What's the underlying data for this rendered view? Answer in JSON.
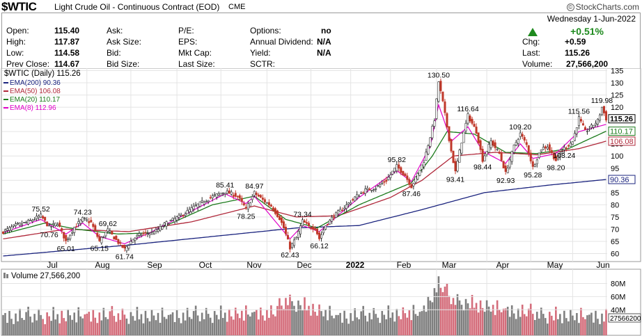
{
  "header": {
    "symbol": "$WTIC",
    "description": "Light Crude Oil - Continuous Contract (EOD)",
    "exchange": "CME",
    "brand": "StockCharts.com",
    "brand_mark": "©"
  },
  "quote": {
    "date": "Wednesday 1-Jun-2022",
    "change_pct": "+0.51%",
    "fields": [
      {
        "label": "Open:",
        "value": "115.40"
      },
      {
        "label": "High:",
        "value": "117.87"
      },
      {
        "label": "Low:",
        "value": "114.58"
      },
      {
        "label": "Prev Close:",
        "value": "114.67"
      },
      {
        "label": "Ask:",
        "value": ""
      },
      {
        "label": "Ask Size:",
        "value": ""
      },
      {
        "label": "Bid:",
        "value": ""
      },
      {
        "label": "Bid Size:",
        "value": ""
      },
      {
        "label": "P/E:",
        "value": ""
      },
      {
        "label": "EPS:",
        "value": ""
      },
      {
        "label": "Mkt Cap:",
        "value": ""
      },
      {
        "label": "Last Size:",
        "value": ""
      },
      {
        "label": "Options:",
        "value": "no"
      },
      {
        "label": "Annual Dividend:",
        "value": "N/A"
      },
      {
        "label": "Yield:",
        "value": "N/A"
      },
      {
        "label": "SCTR:",
        "value": ""
      },
      {
        "label": "Chg:",
        "value": "+0.59"
      },
      {
        "label": "Last:",
        "value": "115.26"
      },
      {
        "label": "Volume:",
        "value": "27,566,200"
      }
    ]
  },
  "colors": {
    "up": "#2a2a2a",
    "down": "#c0392b",
    "ema200": "#1a237e",
    "ema50": "#b0283a",
    "ema20": "#1b7a1b",
    "ema8": "#e000c8",
    "vol_up": "#7f7f7f",
    "vol_down": "#d46d7b",
    "grid": "#e4e4e4"
  },
  "chart_data": {
    "type": "line",
    "price_legend": "$WTIC (Daily) 115.26",
    "x_labels": [
      "Jul",
      "Aug",
      "Sep",
      "Oct",
      "Nov",
      "Dec",
      "2022",
      "Feb",
      "Mar",
      "Apr",
      "May",
      "Jun"
    ],
    "y_ticks": [
      60,
      65,
      70,
      75,
      80,
      85,
      90,
      95,
      100,
      105,
      110,
      115,
      120,
      125,
      130,
      135
    ],
    "ylim": [
      57,
      136
    ],
    "anchors": [
      [
        0,
        69
      ],
      [
        6,
        71.5
      ],
      [
        12,
        73
      ],
      [
        18,
        75.52
      ],
      [
        22,
        70.76
      ],
      [
        26,
        72.6
      ],
      [
        30,
        65.01
      ],
      [
        34,
        70.8
      ],
      [
        38,
        74.23
      ],
      [
        42,
        72.7
      ],
      [
        46,
        65.15
      ],
      [
        50,
        69.62
      ],
      [
        54,
        65.5
      ],
      [
        58,
        61.74
      ],
      [
        62,
        66
      ],
      [
        66,
        68
      ],
      [
        72,
        68.6
      ],
      [
        78,
        72.5
      ],
      [
        85,
        75.5
      ],
      [
        92,
        79.5
      ],
      [
        99,
        83
      ],
      [
        106,
        85.41
      ],
      [
        112,
        83.5
      ],
      [
        116,
        78.25
      ],
      [
        120,
        84.97
      ],
      [
        124,
        82
      ],
      [
        128,
        79.5
      ],
      [
        132,
        74.5
      ],
      [
        134,
        70.5
      ],
      [
        137,
        62.43
      ],
      [
        140,
        66.5
      ],
      [
        143,
        73.34
      ],
      [
        146,
        71
      ],
      [
        149,
        70.5
      ],
      [
        151,
        66.12
      ],
      [
        154,
        71.5
      ],
      [
        158,
        75.5
      ],
      [
        163,
        79
      ],
      [
        168,
        83
      ],
      [
        173,
        86
      ],
      [
        178,
        87
      ],
      [
        183,
        90
      ],
      [
        188,
        95.82
      ],
      [
        192,
        92
      ],
      [
        195,
        87.46
      ],
      [
        198,
        92.5
      ],
      [
        201,
        98
      ],
      [
        204,
        108
      ],
      [
        206,
        115
      ],
      [
        208,
        130.5
      ],
      [
        210,
        122
      ],
      [
        212,
        112
      ],
      [
        214,
        102
      ],
      [
        216,
        93.41
      ],
      [
        219,
        106
      ],
      [
        222,
        116.64
      ],
      [
        226,
        110
      ],
      [
        229,
        98.44
      ],
      [
        233,
        106
      ],
      [
        237,
        101
      ],
      [
        240,
        92.93
      ],
      [
        244,
        104
      ],
      [
        247,
        109.2
      ],
      [
        250,
        104.5
      ],
      [
        253,
        95.28
      ],
      [
        257,
        103
      ],
      [
        260,
        104
      ],
      [
        264,
        98.2
      ],
      [
        268,
        103.24
      ],
      [
        272,
        106
      ],
      [
        275,
        115.56
      ],
      [
        278,
        110
      ],
      [
        281,
        112
      ],
      [
        284,
        114.5
      ],
      [
        286,
        119.98
      ],
      [
        288,
        115.26
      ]
    ],
    "annotations": [
      {
        "label": "75.52",
        "i": 18,
        "v": 75.52,
        "pos": "above"
      },
      {
        "label": "70.76",
        "i": 22,
        "v": 70.76,
        "pos": "below"
      },
      {
        "label": "65.01",
        "i": 30,
        "v": 65.01,
        "pos": "below"
      },
      {
        "label": "74.23",
        "i": 38,
        "v": 74.23,
        "pos": "above"
      },
      {
        "label": "65.15",
        "i": 46,
        "v": 65.15,
        "pos": "below"
      },
      {
        "label": "69.62",
        "i": 50,
        "v": 69.62,
        "pos": "above"
      },
      {
        "label": "61.74",
        "i": 58,
        "v": 61.74,
        "pos": "below"
      },
      {
        "label": "85.41",
        "i": 106,
        "v": 85.41,
        "pos": "above"
      },
      {
        "label": "78.25",
        "i": 116,
        "v": 78.25,
        "pos": "below"
      },
      {
        "label": "84.97",
        "i": 120,
        "v": 84.97,
        "pos": "above"
      },
      {
        "label": "73.34",
        "i": 143,
        "v": 73.34,
        "pos": "above"
      },
      {
        "label": "62.43",
        "i": 137,
        "v": 62.43,
        "pos": "below"
      },
      {
        "label": "66.12",
        "i": 151,
        "v": 66.12,
        "pos": "below"
      },
      {
        "label": "95.82",
        "i": 188,
        "v": 95.82,
        "pos": "above"
      },
      {
        "label": "87.46",
        "i": 195,
        "v": 87.46,
        "pos": "below"
      },
      {
        "label": "130.50",
        "i": 208,
        "v": 130.5,
        "pos": "above"
      },
      {
        "label": "93.41",
        "i": 216,
        "v": 93.41,
        "pos": "below"
      },
      {
        "label": "116.64",
        "i": 222,
        "v": 116.64,
        "pos": "above"
      },
      {
        "label": "98.44",
        "i": 229,
        "v": 98.44,
        "pos": "below"
      },
      {
        "label": "92.93",
        "i": 240,
        "v": 92.93,
        "pos": "below"
      },
      {
        "label": "109.20",
        "i": 247,
        "v": 109.2,
        "pos": "above"
      },
      {
        "label": "95.28",
        "i": 253,
        "v": 95.28,
        "pos": "below"
      },
      {
        "label": "98.20",
        "i": 264,
        "v": 98.2,
        "pos": "below"
      },
      {
        "label": "103.24",
        "i": 268,
        "v": 103.24,
        "pos": "below"
      },
      {
        "label": "115.56",
        "i": 275,
        "v": 115.56,
        "pos": "above"
      },
      {
        "label": "119.98",
        "i": 286,
        "v": 119.98,
        "pos": "above"
      }
    ],
    "series": [
      {
        "name": "EMA(200)",
        "value": 90.36,
        "legend": "EMA(200) 90.36",
        "anchors": [
          [
            0,
            59
          ],
          [
            60,
            63.5
          ],
          [
            100,
            67
          ],
          [
            140,
            70.5
          ],
          [
            170,
            71.5
          ],
          [
            200,
            78
          ],
          [
            230,
            85
          ],
          [
            260,
            88
          ],
          [
            288,
            90.36
          ]
        ]
      },
      {
        "name": "EMA(50)",
        "value": 106.08,
        "legend": "EMA(50) 106.08",
        "anchors": [
          [
            0,
            66
          ],
          [
            30,
            70
          ],
          [
            60,
            69
          ],
          [
            90,
            73
          ],
          [
            120,
            79.5
          ],
          [
            140,
            75
          ],
          [
            160,
            75.5
          ],
          [
            185,
            83
          ],
          [
            200,
            90
          ],
          [
            215,
            100
          ],
          [
            235,
            101.5
          ],
          [
            255,
            100.5
          ],
          [
            275,
            103
          ],
          [
            288,
            106.08
          ]
        ]
      },
      {
        "name": "EMA(20)",
        "value": 110.17,
        "legend": "EMA(20) 110.17",
        "anchors": [
          [
            0,
            68
          ],
          [
            20,
            72.5
          ],
          [
            35,
            70
          ],
          [
            55,
            68
          ],
          [
            70,
            68.5
          ],
          [
            100,
            80
          ],
          [
            120,
            83.5
          ],
          [
            135,
            74
          ],
          [
            150,
            70.5
          ],
          [
            170,
            80
          ],
          [
            195,
            89
          ],
          [
            205,
            100
          ],
          [
            212,
            110
          ],
          [
            225,
            109
          ],
          [
            240,
            101.5
          ],
          [
            255,
            101
          ],
          [
            270,
            103
          ],
          [
            288,
            110.17
          ]
        ]
      },
      {
        "name": "EMA(8)",
        "value": 112.96,
        "legend": "EMA(8) 112.96",
        "anchors": [
          [
            0,
            68.5
          ],
          [
            18,
            74
          ],
          [
            30,
            68
          ],
          [
            38,
            72.5
          ],
          [
            46,
            67
          ],
          [
            58,
            64
          ],
          [
            70,
            68.5
          ],
          [
            106,
            84.5
          ],
          [
            116,
            80.5
          ],
          [
            120,
            83.5
          ],
          [
            137,
            66
          ],
          [
            143,
            71.5
          ],
          [
            151,
            69
          ],
          [
            170,
            83
          ],
          [
            188,
            94
          ],
          [
            195,
            89.5
          ],
          [
            204,
            104
          ],
          [
            208,
            121
          ],
          [
            214,
            106
          ],
          [
            222,
            112
          ],
          [
            229,
            102
          ],
          [
            240,
            97
          ],
          [
            247,
            105
          ],
          [
            253,
            99
          ],
          [
            264,
            101
          ],
          [
            275,
            110
          ],
          [
            288,
            112.96
          ]
        ]
      }
    ],
    "right_labels": [
      {
        "label": "115.26",
        "v": 115.26,
        "color": "#000000",
        "bold": true
      },
      {
        "label": "110.17",
        "v": 110.17,
        "color": "#1b7a1b",
        "bold": false
      },
      {
        "label": "106.08",
        "v": 106.08,
        "color": "#b0283a",
        "bold": false
      },
      {
        "label": "90.36",
        "v": 90.36,
        "color": "#1a237e",
        "bold": false
      }
    ],
    "volume": {
      "legend": "Volume 27,566,200",
      "y_ticks": [
        {
          "label": "80M",
          "v": 80
        },
        {
          "label": "60M",
          "v": 60
        },
        {
          "label": "40M",
          "v": 40
        }
      ],
      "last_label": "27566200",
      "last_value": 27.5662,
      "ylim": [
        0,
        88
      ],
      "anchors": [
        [
          0,
          30
        ],
        [
          40,
          32
        ],
        [
          80,
          31
        ],
        [
          130,
          36
        ],
        [
          135,
          55
        ],
        [
          160,
          30
        ],
        [
          200,
          36
        ],
        [
          208,
          80
        ],
        [
          215,
          55
        ],
        [
          240,
          40
        ],
        [
          260,
          32
        ],
        [
          288,
          30
        ]
      ],
      "values": [
        36,
        39,
        24,
        42,
        30,
        22,
        38,
        26,
        45,
        31,
        28,
        40,
        48,
        33,
        24,
        37,
        27,
        44,
        35,
        29,
        21,
        39,
        33,
        26,
        47,
        28,
        36,
        22,
        41,
        30,
        25,
        43,
        34,
        27,
        38,
        23,
        46,
        32,
        29,
        35
      ]
    }
  }
}
